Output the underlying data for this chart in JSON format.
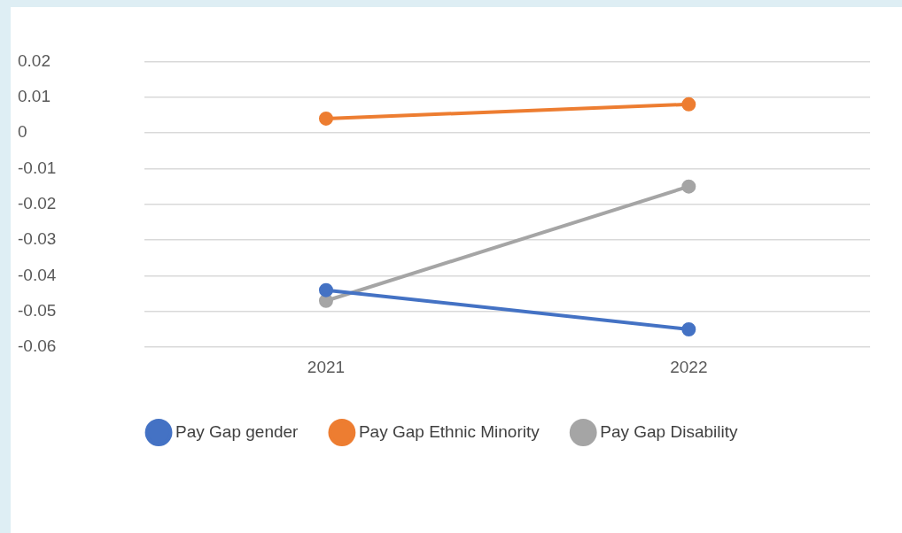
{
  "chart_data": {
    "type": "line",
    "categories": [
      "2021",
      "2022"
    ],
    "series": [
      {
        "name": "Pay Gap gender",
        "color": "#4472c4",
        "values": [
          -0.044,
          -0.055
        ]
      },
      {
        "name": "Pay Gap Ethnic Minority",
        "color": "#ed7d31",
        "values": [
          0.004,
          0.008
        ]
      },
      {
        "name": "Pay Gap Disability",
        "color": "#a5a5a5",
        "values": [
          -0.047,
          -0.015
        ]
      }
    ],
    "ylim": [
      -0.06,
      0.02
    ],
    "yticks": [
      -0.06,
      -0.05,
      -0.04,
      -0.03,
      -0.02,
      -0.01,
      0,
      0.01,
      0.02
    ],
    "grid": "y",
    "legend": "bottom",
    "marker": "circle",
    "line_style": "solid"
  }
}
